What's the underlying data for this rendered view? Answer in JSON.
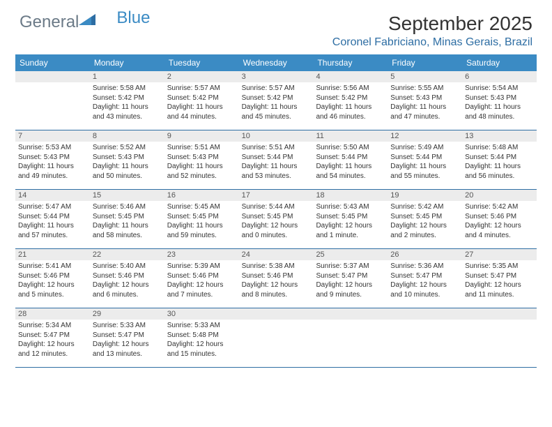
{
  "logo": {
    "part1": "General",
    "part2": "Blue"
  },
  "title": "September 2025",
  "location": "Coronel Fabriciano, Minas Gerais, Brazil",
  "colors": {
    "header_bg": "#3b8bc4",
    "header_text": "#ffffff",
    "num_bar_bg": "#ececec",
    "row_divider": "#2d6da3",
    "location_color": "#2d6da3",
    "logo_gray": "#6b7a87",
    "logo_blue": "#3b8bc4"
  },
  "fonts": {
    "title_size_pt": 21,
    "location_size_pt": 12,
    "day_header_size_pt": 9,
    "body_size_pt": 7.5
  },
  "day_headers": [
    "Sunday",
    "Monday",
    "Tuesday",
    "Wednesday",
    "Thursday",
    "Friday",
    "Saturday"
  ],
  "weeks": [
    [
      {
        "n": "",
        "sunrise": "",
        "sunset": "",
        "daylight": ""
      },
      {
        "n": "1",
        "sunrise": "Sunrise: 5:58 AM",
        "sunset": "Sunset: 5:42 PM",
        "daylight": "Daylight: 11 hours and 43 minutes."
      },
      {
        "n": "2",
        "sunrise": "Sunrise: 5:57 AM",
        "sunset": "Sunset: 5:42 PM",
        "daylight": "Daylight: 11 hours and 44 minutes."
      },
      {
        "n": "3",
        "sunrise": "Sunrise: 5:57 AM",
        "sunset": "Sunset: 5:42 PM",
        "daylight": "Daylight: 11 hours and 45 minutes."
      },
      {
        "n": "4",
        "sunrise": "Sunrise: 5:56 AM",
        "sunset": "Sunset: 5:42 PM",
        "daylight": "Daylight: 11 hours and 46 minutes."
      },
      {
        "n": "5",
        "sunrise": "Sunrise: 5:55 AM",
        "sunset": "Sunset: 5:43 PM",
        "daylight": "Daylight: 11 hours and 47 minutes."
      },
      {
        "n": "6",
        "sunrise": "Sunrise: 5:54 AM",
        "sunset": "Sunset: 5:43 PM",
        "daylight": "Daylight: 11 hours and 48 minutes."
      }
    ],
    [
      {
        "n": "7",
        "sunrise": "Sunrise: 5:53 AM",
        "sunset": "Sunset: 5:43 PM",
        "daylight": "Daylight: 11 hours and 49 minutes."
      },
      {
        "n": "8",
        "sunrise": "Sunrise: 5:52 AM",
        "sunset": "Sunset: 5:43 PM",
        "daylight": "Daylight: 11 hours and 50 minutes."
      },
      {
        "n": "9",
        "sunrise": "Sunrise: 5:51 AM",
        "sunset": "Sunset: 5:43 PM",
        "daylight": "Daylight: 11 hours and 52 minutes."
      },
      {
        "n": "10",
        "sunrise": "Sunrise: 5:51 AM",
        "sunset": "Sunset: 5:44 PM",
        "daylight": "Daylight: 11 hours and 53 minutes."
      },
      {
        "n": "11",
        "sunrise": "Sunrise: 5:50 AM",
        "sunset": "Sunset: 5:44 PM",
        "daylight": "Daylight: 11 hours and 54 minutes."
      },
      {
        "n": "12",
        "sunrise": "Sunrise: 5:49 AM",
        "sunset": "Sunset: 5:44 PM",
        "daylight": "Daylight: 11 hours and 55 minutes."
      },
      {
        "n": "13",
        "sunrise": "Sunrise: 5:48 AM",
        "sunset": "Sunset: 5:44 PM",
        "daylight": "Daylight: 11 hours and 56 minutes."
      }
    ],
    [
      {
        "n": "14",
        "sunrise": "Sunrise: 5:47 AM",
        "sunset": "Sunset: 5:44 PM",
        "daylight": "Daylight: 11 hours and 57 minutes."
      },
      {
        "n": "15",
        "sunrise": "Sunrise: 5:46 AM",
        "sunset": "Sunset: 5:45 PM",
        "daylight": "Daylight: 11 hours and 58 minutes."
      },
      {
        "n": "16",
        "sunrise": "Sunrise: 5:45 AM",
        "sunset": "Sunset: 5:45 PM",
        "daylight": "Daylight: 11 hours and 59 minutes."
      },
      {
        "n": "17",
        "sunrise": "Sunrise: 5:44 AM",
        "sunset": "Sunset: 5:45 PM",
        "daylight": "Daylight: 12 hours and 0 minutes."
      },
      {
        "n": "18",
        "sunrise": "Sunrise: 5:43 AM",
        "sunset": "Sunset: 5:45 PM",
        "daylight": "Daylight: 12 hours and 1 minute."
      },
      {
        "n": "19",
        "sunrise": "Sunrise: 5:42 AM",
        "sunset": "Sunset: 5:45 PM",
        "daylight": "Daylight: 12 hours and 2 minutes."
      },
      {
        "n": "20",
        "sunrise": "Sunrise: 5:42 AM",
        "sunset": "Sunset: 5:46 PM",
        "daylight": "Daylight: 12 hours and 4 minutes."
      }
    ],
    [
      {
        "n": "21",
        "sunrise": "Sunrise: 5:41 AM",
        "sunset": "Sunset: 5:46 PM",
        "daylight": "Daylight: 12 hours and 5 minutes."
      },
      {
        "n": "22",
        "sunrise": "Sunrise: 5:40 AM",
        "sunset": "Sunset: 5:46 PM",
        "daylight": "Daylight: 12 hours and 6 minutes."
      },
      {
        "n": "23",
        "sunrise": "Sunrise: 5:39 AM",
        "sunset": "Sunset: 5:46 PM",
        "daylight": "Daylight: 12 hours and 7 minutes."
      },
      {
        "n": "24",
        "sunrise": "Sunrise: 5:38 AM",
        "sunset": "Sunset: 5:46 PM",
        "daylight": "Daylight: 12 hours and 8 minutes."
      },
      {
        "n": "25",
        "sunrise": "Sunrise: 5:37 AM",
        "sunset": "Sunset: 5:47 PM",
        "daylight": "Daylight: 12 hours and 9 minutes."
      },
      {
        "n": "26",
        "sunrise": "Sunrise: 5:36 AM",
        "sunset": "Sunset: 5:47 PM",
        "daylight": "Daylight: 12 hours and 10 minutes."
      },
      {
        "n": "27",
        "sunrise": "Sunrise: 5:35 AM",
        "sunset": "Sunset: 5:47 PM",
        "daylight": "Daylight: 12 hours and 11 minutes."
      }
    ],
    [
      {
        "n": "28",
        "sunrise": "Sunrise: 5:34 AM",
        "sunset": "Sunset: 5:47 PM",
        "daylight": "Daylight: 12 hours and 12 minutes."
      },
      {
        "n": "29",
        "sunrise": "Sunrise: 5:33 AM",
        "sunset": "Sunset: 5:47 PM",
        "daylight": "Daylight: 12 hours and 13 minutes."
      },
      {
        "n": "30",
        "sunrise": "Sunrise: 5:33 AM",
        "sunset": "Sunset: 5:48 PM",
        "daylight": "Daylight: 12 hours and 15 minutes."
      },
      {
        "n": "",
        "sunrise": "",
        "sunset": "",
        "daylight": ""
      },
      {
        "n": "",
        "sunrise": "",
        "sunset": "",
        "daylight": ""
      },
      {
        "n": "",
        "sunrise": "",
        "sunset": "",
        "daylight": ""
      },
      {
        "n": "",
        "sunrise": "",
        "sunset": "",
        "daylight": ""
      }
    ]
  ]
}
